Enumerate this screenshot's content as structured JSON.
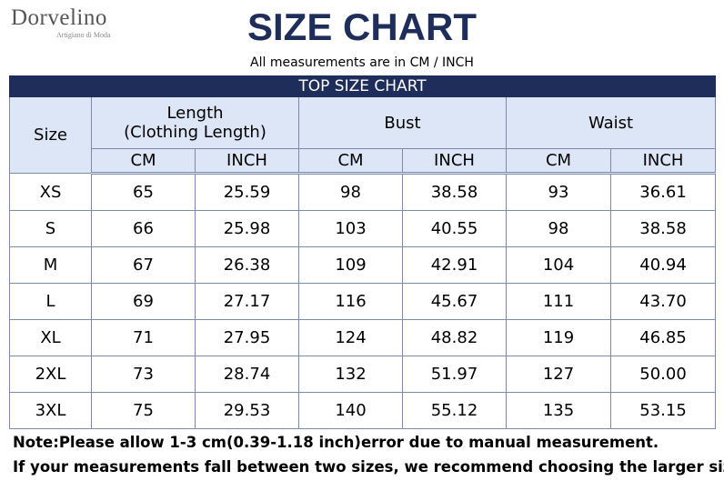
{
  "header": {
    "brand": "Dorvelino",
    "brand_tagline": "Artigiano di Moda",
    "title": "SIZE CHART",
    "subtitle": "All measurements are in CM / INCH"
  },
  "table": {
    "title": "TOP SIZE CHART",
    "size_header": "Size",
    "groups": [
      {
        "lines": [
          "Length",
          "(Clothing Length)"
        ]
      },
      {
        "lines": [
          "Bust"
        ]
      },
      {
        "lines": [
          "Waist"
        ]
      }
    ],
    "units": [
      "CM",
      "INCH",
      "CM",
      "INCH",
      "CM",
      "INCH"
    ],
    "rows": [
      [
        "XS",
        "65",
        "25.59",
        "98",
        "38.58",
        "93",
        "36.61"
      ],
      [
        "S",
        "66",
        "25.98",
        "103",
        "40.55",
        "98",
        "38.58"
      ],
      [
        "M",
        "67",
        "26.38",
        "109",
        "42.91",
        "104",
        "40.94"
      ],
      [
        "L",
        "69",
        "27.17",
        "116",
        "45.67",
        "111",
        "43.70"
      ],
      [
        "XL",
        "71",
        "27.95",
        "124",
        "48.82",
        "119",
        "46.85"
      ],
      [
        "2XL",
        "73",
        "28.74",
        "132",
        "51.97",
        "127",
        "50.00"
      ],
      [
        "3XL",
        "75",
        "29.53",
        "140",
        "55.12",
        "135",
        "53.15"
      ]
    ]
  },
  "notes": [
    "Note:Please allow 1-3 cm(0.39-1.18 inch)error due to manual measurement.",
    "If your measurements fall between two sizes, we recommend choosing the larger size."
  ]
}
